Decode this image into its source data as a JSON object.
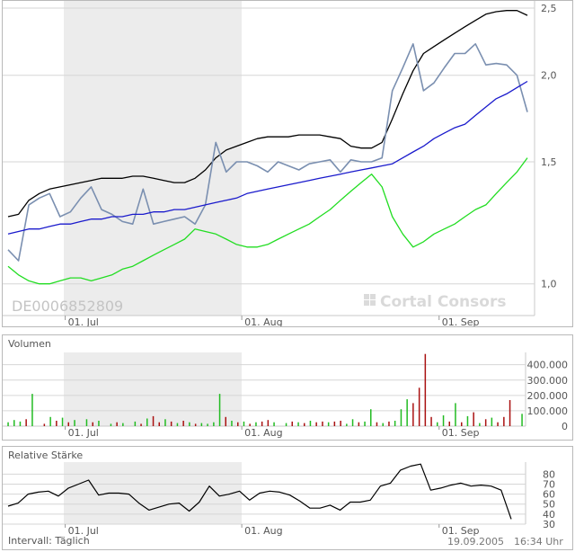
{
  "main": {
    "isin": "DE0006852809",
    "watermark": "Cortal Consors",
    "y_axis": [
      {
        "v": 1.0,
        "label": "1,0"
      },
      {
        "v": 1.5,
        "label": "1,5"
      },
      {
        "v": 2.0,
        "label": "2,0"
      },
      {
        "v": 2.5,
        "label": "2,5"
      }
    ],
    "ylim": [
      0.9,
      2.5
    ],
    "x_labels": [
      "01. Jul",
      "01. Aug",
      "01. Sep"
    ]
  },
  "volume": {
    "title": "Volumen",
    "y_axis": [
      {
        "v": 0,
        "label": "0"
      },
      {
        "v": 100000,
        "label": "100.000"
      },
      {
        "v": 200000,
        "label": "200.000"
      },
      {
        "v": 300000,
        "label": "300.000"
      },
      {
        "v": 400000,
        "label": "400.000"
      }
    ],
    "x_labels": [
      "01. Jul",
      "01. Aug",
      "01. Sep"
    ]
  },
  "rsi": {
    "title": "Relative Stärke",
    "y_axis": [
      {
        "v": 30,
        "label": "30"
      },
      {
        "v": 40,
        "label": "40"
      },
      {
        "v": 50,
        "label": "50"
      },
      {
        "v": 60,
        "label": "60"
      },
      {
        "v": 70,
        "label": "70"
      },
      {
        "v": 80,
        "label": "80"
      }
    ],
    "x_labels": [
      "01. Jul",
      "01. Aug",
      "01. Sep"
    ]
  },
  "footer": {
    "interval": "Intervall: Täglich",
    "date": "19.09.2005",
    "time": "16:34 Uhr"
  },
  "colors": {
    "price": "#7a8fb0",
    "upper_band": "#000000",
    "middle_band": "#1a1acc",
    "lower_band": "#22dd22",
    "volume_up": "#22bb22",
    "volume_down": "#aa1111",
    "shade": "#ececec"
  },
  "chart_data": [
    {
      "type": "line",
      "x": [
        0,
        2,
        4,
        6,
        8,
        10,
        12,
        14,
        16,
        18,
        20,
        22,
        24,
        26,
        28,
        30,
        32,
        34,
        36,
        38,
        40,
        42,
        44,
        46,
        48,
        50,
        52,
        54,
        56,
        58,
        60,
        62,
        64,
        66,
        68,
        70,
        72,
        74,
        76,
        78,
        80,
        82,
        84,
        86,
        88,
        90,
        92,
        94,
        96,
        98,
        100
      ],
      "x_ticks": [
        {
          "x": 11,
          "label": "01. Jul"
        },
        {
          "x": 45,
          "label": "01. Aug"
        },
        {
          "x": 83,
          "label": "01. Sep"
        }
      ],
      "ylim": [
        0.9,
        2.5
      ],
      "series": [
        {
          "key": "upper",
          "values": [
            1.25,
            1.26,
            1.32,
            1.35,
            1.37,
            1.38,
            1.39,
            1.4,
            1.41,
            1.42,
            1.42,
            1.42,
            1.43,
            1.43,
            1.42,
            1.41,
            1.4,
            1.4,
            1.42,
            1.46,
            1.52,
            1.56,
            1.58,
            1.6,
            1.62,
            1.63,
            1.63,
            1.63,
            1.64,
            1.64,
            1.64,
            1.63,
            1.62,
            1.58,
            1.57,
            1.57,
            1.6,
            1.73,
            1.88,
            2.03,
            2.15,
            2.2,
            2.25,
            2.3,
            2.35,
            2.4,
            2.45,
            2.47,
            2.48,
            2.48,
            2.44
          ]
        },
        {
          "key": "price",
          "values": [
            1.12,
            1.08,
            1.3,
            1.33,
            1.35,
            1.25,
            1.27,
            1.33,
            1.38,
            1.28,
            1.26,
            1.23,
            1.22,
            1.37,
            1.22,
            1.23,
            1.24,
            1.25,
            1.22,
            1.3,
            1.6,
            1.45,
            1.5,
            1.5,
            1.48,
            1.45,
            1.5,
            1.48,
            1.46,
            1.49,
            1.5,
            1.51,
            1.45,
            1.51,
            1.5,
            1.5,
            1.52,
            1.9,
            2.05,
            2.22,
            1.9,
            1.95,
            2.05,
            2.15,
            2.15,
            2.22,
            2.07,
            2.08,
            2.07,
            2.0,
            1.77
          ]
        },
        {
          "key": "middle",
          "values": [
            1.18,
            1.19,
            1.2,
            1.2,
            1.21,
            1.22,
            1.22,
            1.23,
            1.24,
            1.24,
            1.25,
            1.25,
            1.26,
            1.26,
            1.27,
            1.27,
            1.28,
            1.28,
            1.29,
            1.3,
            1.31,
            1.32,
            1.33,
            1.35,
            1.36,
            1.37,
            1.38,
            1.39,
            1.4,
            1.41,
            1.42,
            1.43,
            1.44,
            1.45,
            1.46,
            1.47,
            1.48,
            1.49,
            1.52,
            1.55,
            1.58,
            1.62,
            1.65,
            1.68,
            1.7,
            1.75,
            1.8,
            1.85,
            1.88,
            1.92,
            1.96
          ]
        },
        {
          "key": "lower",
          "values": [
            1.06,
            1.03,
            1.01,
            1.0,
            1.0,
            1.01,
            1.02,
            1.02,
            1.01,
            1.02,
            1.03,
            1.05,
            1.06,
            1.08,
            1.1,
            1.12,
            1.14,
            1.16,
            1.2,
            1.19,
            1.18,
            1.16,
            1.14,
            1.13,
            1.13,
            1.14,
            1.16,
            1.18,
            1.2,
            1.22,
            1.25,
            1.28,
            1.32,
            1.36,
            1.4,
            1.44,
            1.38,
            1.25,
            1.18,
            1.13,
            1.15,
            1.18,
            1.2,
            1.22,
            1.25,
            1.28,
            1.3,
            1.35,
            1.4,
            1.45,
            1.52
          ]
        }
      ]
    },
    {
      "type": "bar",
      "ylim": [
        0,
        480000
      ],
      "bars": [
        {
          "x": 0,
          "v": 25000,
          "dir": "up"
        },
        {
          "x": 1,
          "v": 40000,
          "dir": "up"
        },
        {
          "x": 2,
          "v": 30000,
          "dir": "up"
        },
        {
          "x": 3,
          "v": 45000,
          "dir": "down"
        },
        {
          "x": 4,
          "v": 210000,
          "dir": "up"
        },
        {
          "x": 6,
          "v": 15000,
          "dir": "down"
        },
        {
          "x": 7,
          "v": 60000,
          "dir": "up"
        },
        {
          "x": 8,
          "v": 35000,
          "dir": "down"
        },
        {
          "x": 9,
          "v": 55000,
          "dir": "up"
        },
        {
          "x": 10,
          "v": 25000,
          "dir": "down"
        },
        {
          "x": 11,
          "v": 40000,
          "dir": "up"
        },
        {
          "x": 13,
          "v": 45000,
          "dir": "up"
        },
        {
          "x": 14,
          "v": 25000,
          "dir": "down"
        },
        {
          "x": 15,
          "v": 35000,
          "dir": "up"
        },
        {
          "x": 17,
          "v": 15000,
          "dir": "up"
        },
        {
          "x": 18,
          "v": 25000,
          "dir": "down"
        },
        {
          "x": 19,
          "v": 20000,
          "dir": "up"
        },
        {
          "x": 21,
          "v": 30000,
          "dir": "up"
        },
        {
          "x": 22,
          "v": 15000,
          "dir": "down"
        },
        {
          "x": 23,
          "v": 50000,
          "dir": "up"
        },
        {
          "x": 24,
          "v": 65000,
          "dir": "down"
        },
        {
          "x": 25,
          "v": 25000,
          "dir": "down"
        },
        {
          "x": 26,
          "v": 45000,
          "dir": "up"
        },
        {
          "x": 27,
          "v": 30000,
          "dir": "down"
        },
        {
          "x": 28,
          "v": 20000,
          "dir": "up"
        },
        {
          "x": 29,
          "v": 35000,
          "dir": "down"
        },
        {
          "x": 30,
          "v": 25000,
          "dir": "up"
        },
        {
          "x": 31,
          "v": 15000,
          "dir": "down"
        },
        {
          "x": 32,
          "v": 20000,
          "dir": "up"
        },
        {
          "x": 33,
          "v": 15000,
          "dir": "up"
        },
        {
          "x": 34,
          "v": 25000,
          "dir": "up"
        },
        {
          "x": 35,
          "v": 210000,
          "dir": "up"
        },
        {
          "x": 36,
          "v": 60000,
          "dir": "down"
        },
        {
          "x": 37,
          "v": 35000,
          "dir": "up"
        },
        {
          "x": 38,
          "v": 25000,
          "dir": "down"
        },
        {
          "x": 39,
          "v": 30000,
          "dir": "up"
        },
        {
          "x": 40,
          "v": 15000,
          "dir": "down"
        },
        {
          "x": 41,
          "v": 25000,
          "dir": "up"
        },
        {
          "x": 42,
          "v": 30000,
          "dir": "down"
        },
        {
          "x": 43,
          "v": 40000,
          "dir": "down"
        },
        {
          "x": 44,
          "v": 25000,
          "dir": "up"
        },
        {
          "x": 46,
          "v": 20000,
          "dir": "up"
        },
        {
          "x": 47,
          "v": 30000,
          "dir": "down"
        },
        {
          "x": 48,
          "v": 25000,
          "dir": "up"
        },
        {
          "x": 49,
          "v": 20000,
          "dir": "down"
        },
        {
          "x": 50,
          "v": 35000,
          "dir": "up"
        },
        {
          "x": 51,
          "v": 25000,
          "dir": "down"
        },
        {
          "x": 52,
          "v": 30000,
          "dir": "down"
        },
        {
          "x": 53,
          "v": 25000,
          "dir": "up"
        },
        {
          "x": 54,
          "v": 30000,
          "dir": "down"
        },
        {
          "x": 55,
          "v": 35000,
          "dir": "down"
        },
        {
          "x": 56,
          "v": 15000,
          "dir": "up"
        },
        {
          "x": 57,
          "v": 45000,
          "dir": "up"
        },
        {
          "x": 58,
          "v": 25000,
          "dir": "down"
        },
        {
          "x": 59,
          "v": 30000,
          "dir": "up"
        },
        {
          "x": 60,
          "v": 110000,
          "dir": "up"
        },
        {
          "x": 61,
          "v": 25000,
          "dir": "down"
        },
        {
          "x": 62,
          "v": 20000,
          "dir": "up"
        },
        {
          "x": 63,
          "v": 30000,
          "dir": "down"
        },
        {
          "x": 64,
          "v": 35000,
          "dir": "up"
        },
        {
          "x": 65,
          "v": 110000,
          "dir": "up"
        },
        {
          "x": 66,
          "v": 175000,
          "dir": "up"
        },
        {
          "x": 67,
          "v": 150000,
          "dir": "down"
        },
        {
          "x": 68,
          "v": 250000,
          "dir": "down"
        },
        {
          "x": 69,
          "v": 470000,
          "dir": "down"
        },
        {
          "x": 70,
          "v": 60000,
          "dir": "down"
        },
        {
          "x": 71,
          "v": 25000,
          "dir": "up"
        },
        {
          "x": 72,
          "v": 70000,
          "dir": "up"
        },
        {
          "x": 73,
          "v": 30000,
          "dir": "down"
        },
        {
          "x": 74,
          "v": 150000,
          "dir": "up"
        },
        {
          "x": 75,
          "v": 25000,
          "dir": "down"
        },
        {
          "x": 76,
          "v": 65000,
          "dir": "up"
        },
        {
          "x": 77,
          "v": 90000,
          "dir": "down"
        },
        {
          "x": 78,
          "v": 20000,
          "dir": "up"
        },
        {
          "x": 79,
          "v": 45000,
          "dir": "down"
        },
        {
          "x": 80,
          "v": 55000,
          "dir": "up"
        },
        {
          "x": 81,
          "v": 25000,
          "dir": "down"
        },
        {
          "x": 82,
          "v": 60000,
          "dir": "down"
        },
        {
          "x": 83,
          "v": 170000,
          "dir": "down"
        },
        {
          "x": 85,
          "v": 80000,
          "dir": "up"
        }
      ]
    },
    {
      "type": "line",
      "ylim": [
        30,
        92
      ],
      "x": [
        0,
        2,
        4,
        6,
        8,
        10,
        12,
        14,
        16,
        18,
        20,
        22,
        24,
        26,
        28,
        30,
        32,
        34,
        36,
        38,
        40,
        42,
        44,
        46,
        48,
        50,
        52,
        54,
        56,
        58,
        60,
        62,
        64,
        66,
        68,
        70,
        72,
        74,
        76,
        78,
        80,
        82,
        84,
        86,
        88,
        90,
        92,
        94,
        96,
        98,
        100
      ],
      "values": [
        48,
        51,
        60,
        62,
        63,
        58,
        66,
        70,
        74,
        59,
        61,
        61,
        60,
        51,
        44,
        47,
        50,
        51,
        43,
        52,
        68,
        58,
        60,
        63,
        54,
        61,
        63,
        62,
        59,
        53,
        46,
        46,
        49,
        44,
        52,
        52,
        54,
        68,
        71,
        84,
        88,
        90,
        64,
        66,
        69,
        71,
        68,
        69,
        68,
        64,
        35
      ]
    }
  ]
}
